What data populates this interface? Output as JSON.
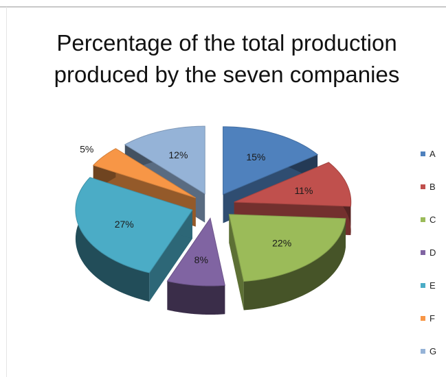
{
  "chart_data": {
    "type": "pie",
    "title": "Percentage of the total production\nproduced by the seven companies",
    "slices": [
      {
        "name": "A",
        "value": 15,
        "label": "15%",
        "color": "#4F81BD"
      },
      {
        "name": "B",
        "value": 11,
        "label": "11%",
        "color": "#C0504D"
      },
      {
        "name": "C",
        "value": 22,
        "label": "22%",
        "color": "#9BBB59"
      },
      {
        "name": "D",
        "value": 8,
        "label": "8%",
        "color": "#8064A2"
      },
      {
        "name": "E",
        "value": 27,
        "label": "27%",
        "color": "#4BACC6"
      },
      {
        "name": "F",
        "value": 5,
        "label": "5%",
        "color": "#F79646"
      },
      {
        "name": "G",
        "value": 12,
        "label": "12%",
        "color": "#95B3D7"
      }
    ],
    "legend_position": "right",
    "style": "3d-exploded"
  }
}
